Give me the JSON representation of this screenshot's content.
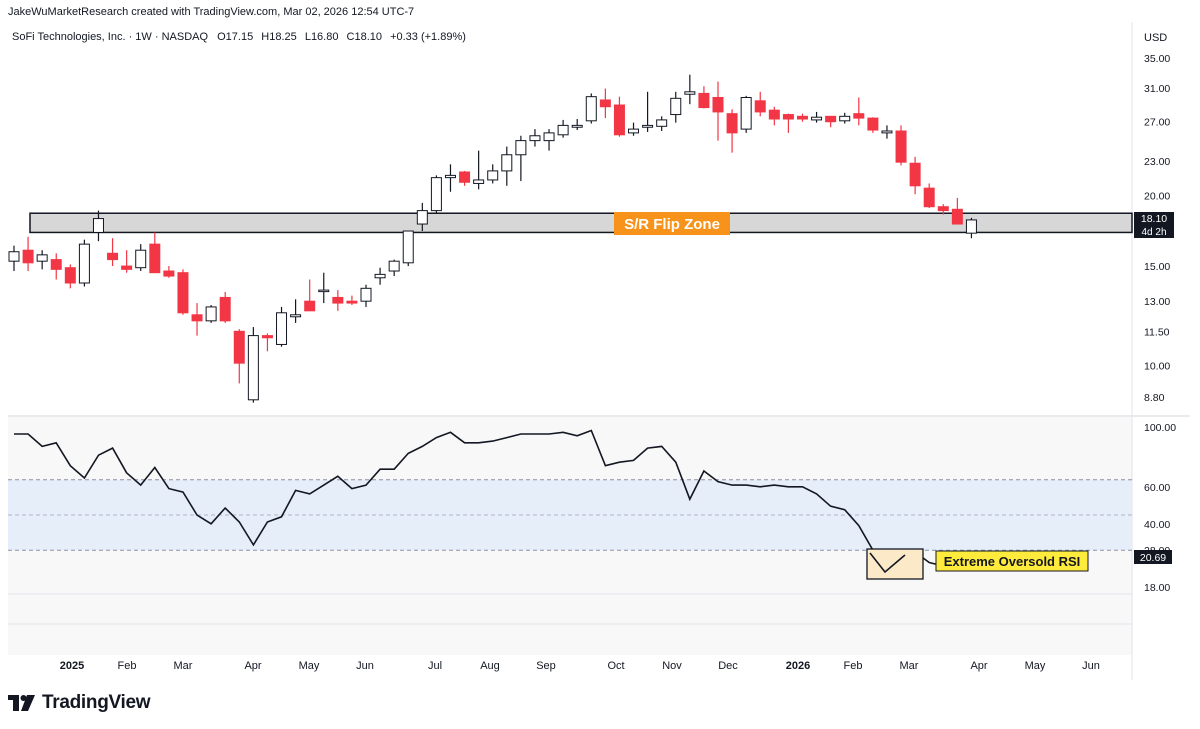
{
  "header": {
    "attribution": "JakeWuMarketResearch created with TradingView.com, Mar 02, 2026 12:54 UTC-7"
  },
  "branding": {
    "name": "TradingView",
    "logo_icon": "tradingview-logo-icon"
  },
  "colors": {
    "up_fill": "#ffffff",
    "down_fill": "#f23645",
    "candle_border": "#131722",
    "pane_bg": "#f8f8f8",
    "rsi_band": "#e6eefa",
    "zone_fill": "#d7d7d7",
    "zone_label_bg": "#f7931a",
    "rsi_label_bg": "#ffeb3b",
    "oversold_box_bg": "#fce9c8"
  },
  "chart_data": [
    {
      "type": "candlestick",
      "title": "SoFi Technologies, Inc. · 1W · NASDAQ",
      "ohlc_readout": {
        "o_label": "O",
        "o": "17.15",
        "h_label": "H",
        "h": "18.25",
        "l_label": "L",
        "l": "16.80",
        "c_label": "C",
        "c": "18.10",
        "change": "+0.33 (+1.89%)"
      },
      "currency": "USD",
      "scale": "log",
      "price_ticks": [
        "35.00",
        "31.00",
        "27.00",
        "23.00",
        "20.00",
        "15.00",
        "13.00",
        "11.50",
        "10.00",
        "8.80"
      ],
      "last_price_label": "18.10",
      "countdown_label": "4d 2h",
      "x_ticks": [
        "2025",
        "Feb",
        "Mar",
        "Apr",
        "May",
        "Jun",
        "Jul",
        "Aug",
        "Sep",
        "Oct",
        "Nov",
        "Dec",
        "2026",
        "Feb",
        "Mar",
        "Apr",
        "May",
        "Jun"
      ],
      "annotations": [
        {
          "text": "S/R Flip Zone",
          "price_low": 17.2,
          "price_high": 18.6
        }
      ],
      "candles": [
        {
          "o": 15.3,
          "h": 16.3,
          "l": 14.7,
          "c": 15.9
        },
        {
          "o": 16.0,
          "h": 16.9,
          "l": 14.7,
          "c": 15.2
        },
        {
          "o": 15.3,
          "h": 16.0,
          "l": 14.8,
          "c": 15.7
        },
        {
          "o": 15.4,
          "h": 15.8,
          "l": 14.2,
          "c": 14.8
        },
        {
          "o": 14.9,
          "h": 15.1,
          "l": 13.7,
          "c": 14.0
        },
        {
          "o": 14.0,
          "h": 16.7,
          "l": 13.8,
          "c": 16.4
        },
        {
          "o": 17.2,
          "h": 18.8,
          "l": 16.6,
          "c": 18.2
        },
        {
          "o": 15.8,
          "h": 16.8,
          "l": 15.0,
          "c": 15.4
        },
        {
          "o": 15.0,
          "h": 16.0,
          "l": 14.6,
          "c": 14.8
        },
        {
          "o": 14.9,
          "h": 16.4,
          "l": 14.7,
          "c": 16.0
        },
        {
          "o": 16.4,
          "h": 17.2,
          "l": 14.6,
          "c": 14.6
        },
        {
          "o": 14.7,
          "h": 15.0,
          "l": 14.3,
          "c": 14.4
        },
        {
          "o": 14.6,
          "h": 14.8,
          "l": 12.3,
          "c": 12.4
        },
        {
          "o": 12.3,
          "h": 12.9,
          "l": 11.3,
          "c": 12.0
        },
        {
          "o": 12.0,
          "h": 12.8,
          "l": 11.9,
          "c": 12.7
        },
        {
          "o": 13.2,
          "h": 13.5,
          "l": 11.9,
          "c": 12.0
        },
        {
          "o": 11.5,
          "h": 11.6,
          "l": 9.3,
          "c": 10.1
        },
        {
          "o": 8.7,
          "h": 11.7,
          "l": 8.6,
          "c": 11.3
        },
        {
          "o": 11.3,
          "h": 11.4,
          "l": 10.6,
          "c": 11.2
        },
        {
          "o": 10.9,
          "h": 12.7,
          "l": 10.8,
          "c": 12.4
        },
        {
          "o": 12.2,
          "h": 13.1,
          "l": 11.9,
          "c": 12.3
        },
        {
          "o": 13.0,
          "h": 14.2,
          "l": 12.6,
          "c": 12.5
        },
        {
          "o": 13.6,
          "h": 14.6,
          "l": 12.9,
          "c": 13.6
        },
        {
          "o": 13.2,
          "h": 13.6,
          "l": 12.5,
          "c": 12.9
        },
        {
          "o": 13.0,
          "h": 13.3,
          "l": 12.8,
          "c": 12.9
        },
        {
          "o": 13.0,
          "h": 13.9,
          "l": 12.7,
          "c": 13.7
        },
        {
          "o": 14.3,
          "h": 14.9,
          "l": 13.9,
          "c": 14.5
        },
        {
          "o": 14.7,
          "h": 15.4,
          "l": 14.4,
          "c": 15.3
        },
        {
          "o": 15.2,
          "h": 17.3,
          "l": 15.0,
          "c": 17.3
        },
        {
          "o": 17.8,
          "h": 19.4,
          "l": 17.3,
          "c": 18.8
        },
        {
          "o": 18.8,
          "h": 21.7,
          "l": 18.6,
          "c": 21.5
        },
        {
          "o": 21.5,
          "h": 22.7,
          "l": 20.3,
          "c": 21.7
        },
        {
          "o": 22.0,
          "h": 22.1,
          "l": 20.8,
          "c": 21.1
        },
        {
          "o": 21.0,
          "h": 24.0,
          "l": 20.5,
          "c": 21.3
        },
        {
          "o": 21.3,
          "h": 22.7,
          "l": 21.0,
          "c": 22.1
        },
        {
          "o": 22.1,
          "h": 24.4,
          "l": 20.8,
          "c": 23.6
        },
        {
          "o": 23.6,
          "h": 25.5,
          "l": 21.2,
          "c": 25.0
        },
        {
          "o": 25.0,
          "h": 26.2,
          "l": 24.4,
          "c": 25.5
        },
        {
          "o": 25.0,
          "h": 26.2,
          "l": 24.0,
          "c": 25.8
        },
        {
          "o": 25.6,
          "h": 27.2,
          "l": 25.3,
          "c": 26.6
        },
        {
          "o": 26.4,
          "h": 27.3,
          "l": 26.1,
          "c": 26.6
        },
        {
          "o": 27.1,
          "h": 30.3,
          "l": 26.8,
          "c": 29.9
        },
        {
          "o": 29.5,
          "h": 30.9,
          "l": 27.4,
          "c": 28.7
        },
        {
          "o": 28.9,
          "h": 29.9,
          "l": 25.4,
          "c": 25.6
        },
        {
          "o": 25.8,
          "h": 26.9,
          "l": 25.5,
          "c": 26.2
        },
        {
          "o": 26.4,
          "h": 30.5,
          "l": 25.9,
          "c": 26.6
        },
        {
          "o": 26.5,
          "h": 27.6,
          "l": 26.0,
          "c": 27.2
        },
        {
          "o": 27.8,
          "h": 30.5,
          "l": 26.9,
          "c": 29.7
        },
        {
          "o": 30.2,
          "h": 32.7,
          "l": 29.0,
          "c": 30.5
        },
        {
          "o": 30.3,
          "h": 31.2,
          "l": 28.5,
          "c": 28.6
        },
        {
          "o": 29.8,
          "h": 31.8,
          "l": 25.0,
          "c": 28.1
        },
        {
          "o": 27.9,
          "h": 28.4,
          "l": 23.8,
          "c": 25.8
        },
        {
          "o": 26.2,
          "h": 30.0,
          "l": 25.8,
          "c": 29.8
        },
        {
          "o": 29.4,
          "h": 30.5,
          "l": 27.6,
          "c": 28.1
        },
        {
          "o": 28.3,
          "h": 28.7,
          "l": 26.6,
          "c": 27.3
        },
        {
          "o": 27.8,
          "h": 27.9,
          "l": 25.8,
          "c": 27.3
        },
        {
          "o": 27.6,
          "h": 27.9,
          "l": 27.0,
          "c": 27.3
        },
        {
          "o": 27.2,
          "h": 28.1,
          "l": 26.9,
          "c": 27.5
        },
        {
          "o": 27.6,
          "h": 27.6,
          "l": 26.4,
          "c": 27.0
        },
        {
          "o": 27.1,
          "h": 28.0,
          "l": 26.8,
          "c": 27.6
        },
        {
          "o": 27.9,
          "h": 29.8,
          "l": 26.6,
          "c": 27.4
        },
        {
          "o": 27.4,
          "h": 27.5,
          "l": 25.8,
          "c": 26.1
        },
        {
          "o": 25.8,
          "h": 26.6,
          "l": 25.2,
          "c": 26.0
        },
        {
          "o": 26.0,
          "h": 26.6,
          "l": 22.6,
          "c": 22.9
        },
        {
          "o": 22.8,
          "h": 23.4,
          "l": 20.1,
          "c": 20.8
        },
        {
          "o": 20.6,
          "h": 21.0,
          "l": 19.0,
          "c": 19.1
        },
        {
          "o": 19.1,
          "h": 19.3,
          "l": 18.5,
          "c": 18.8
        },
        {
          "o": 18.9,
          "h": 19.8,
          "l": 17.8,
          "c": 17.8
        },
        {
          "o": 17.15,
          "h": 18.25,
          "l": 16.8,
          "c": 18.1
        }
      ]
    },
    {
      "type": "line",
      "title": "RSI",
      "y_ticks": [
        "100.00",
        "60.00",
        "40.00",
        "28.00",
        "18.00"
      ],
      "band": [
        30,
        70
      ],
      "midline": 50,
      "last_value_label": "20.69",
      "annotations": [
        {
          "text": "Extreme Oversold RSI"
        }
      ],
      "values": [
        96,
        96,
        89,
        91,
        78,
        71,
        84,
        88,
        74,
        67,
        77,
        65,
        63,
        50,
        45,
        54,
        46,
        33,
        46,
        49,
        64,
        62,
        67,
        72,
        65,
        67,
        76,
        76,
        85,
        89,
        94,
        97,
        91,
        91,
        92,
        94,
        96,
        96,
        96,
        97,
        95,
        98,
        78,
        80,
        81,
        88,
        89,
        80,
        59,
        75,
        69,
        67,
        67,
        66,
        67,
        66,
        66,
        62,
        55,
        53,
        44,
        30,
        25,
        21,
        29,
        23,
        21,
        29,
        20.69
      ]
    }
  ]
}
